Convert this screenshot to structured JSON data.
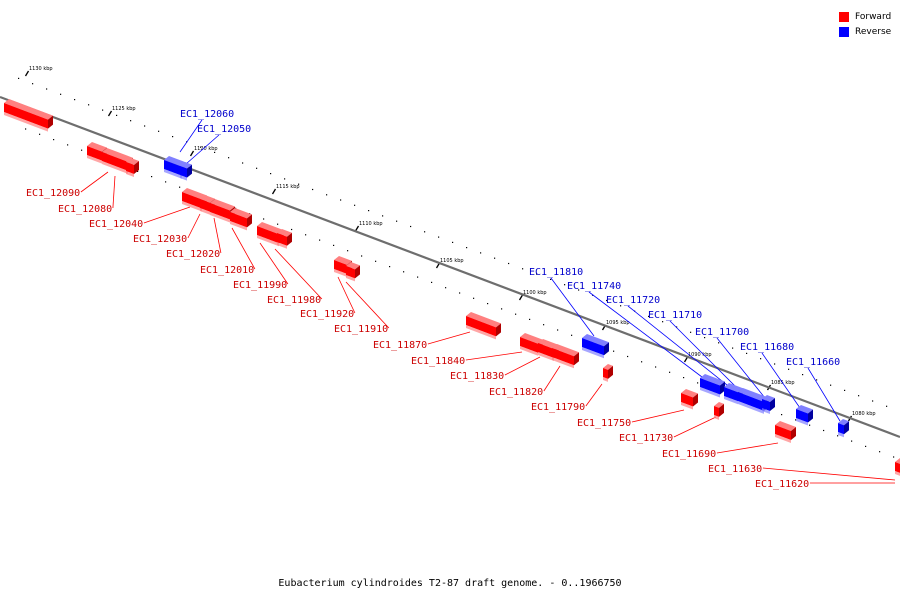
{
  "legend": [
    {
      "label": "Forward",
      "color": "#ff0000"
    },
    {
      "label": "Reverse",
      "color": "#0000ff"
    }
  ],
  "caption": "Eubacterium cylindroides T2-87 draft genome. - 0..1966750",
  "colors": {
    "forward": "#ff0000",
    "forward_label": "#cc0000",
    "reverse": "#0000ff",
    "reverse_label": "#0000cc",
    "backbone": "#6e6e6e"
  },
  "ticks": [
    {
      "kbp": 1130,
      "label": "1130 kbp"
    },
    {
      "kbp": 1125,
      "label": "1125 kbp"
    },
    {
      "kbp": 1120,
      "label": "1120 kbp"
    },
    {
      "kbp": 1115,
      "label": "1115 kbp"
    },
    {
      "kbp": 1110,
      "label": "1110 kbp"
    },
    {
      "kbp": 1105,
      "label": "1105 kbp"
    },
    {
      "kbp": 1100,
      "label": "1100 kbp"
    },
    {
      "kbp": 1095,
      "label": "1095 kbp"
    },
    {
      "kbp": 1090,
      "label": "1090 kbp"
    },
    {
      "kbp": 1085,
      "label": "1085 kbp"
    },
    {
      "kbp": 1080,
      "label": "1080 kbp"
    }
  ],
  "genes": [
    {
      "name": "EC1_12060",
      "strand": "reverse"
    },
    {
      "name": "EC1_12050",
      "strand": "reverse"
    },
    {
      "name": "EC1_12090",
      "strand": "forward"
    },
    {
      "name": "EC1_12080",
      "strand": "forward"
    },
    {
      "name": "EC1_12040",
      "strand": "forward"
    },
    {
      "name": "EC1_12030",
      "strand": "forward"
    },
    {
      "name": "EC1_12020",
      "strand": "forward"
    },
    {
      "name": "EC1_12010",
      "strand": "forward"
    },
    {
      "name": "EC1_11990",
      "strand": "forward"
    },
    {
      "name": "EC1_11980",
      "strand": "forward"
    },
    {
      "name": "EC1_11920",
      "strand": "forward"
    },
    {
      "name": "EC1_11910",
      "strand": "forward"
    },
    {
      "name": "EC1_11870",
      "strand": "forward"
    },
    {
      "name": "EC1_11840",
      "strand": "forward"
    },
    {
      "name": "EC1_11830",
      "strand": "forward"
    },
    {
      "name": "EC1_11820",
      "strand": "forward"
    },
    {
      "name": "EC1_11790",
      "strand": "forward"
    },
    {
      "name": "EC1_11750",
      "strand": "forward"
    },
    {
      "name": "EC1_11730",
      "strand": "forward"
    },
    {
      "name": "EC1_11690",
      "strand": "forward"
    },
    {
      "name": "EC1_11630",
      "strand": "forward"
    },
    {
      "name": "EC1_11620",
      "strand": "forward"
    },
    {
      "name": "EC1_11810",
      "strand": "reverse"
    },
    {
      "name": "EC1_11740",
      "strand": "reverse"
    },
    {
      "name": "EC1_11720",
      "strand": "reverse"
    },
    {
      "name": "EC1_11710",
      "strand": "reverse"
    },
    {
      "name": "EC1_11700",
      "strand": "reverse"
    },
    {
      "name": "EC1_11680",
      "strand": "reverse"
    },
    {
      "name": "EC1_11660",
      "strand": "reverse"
    }
  ]
}
